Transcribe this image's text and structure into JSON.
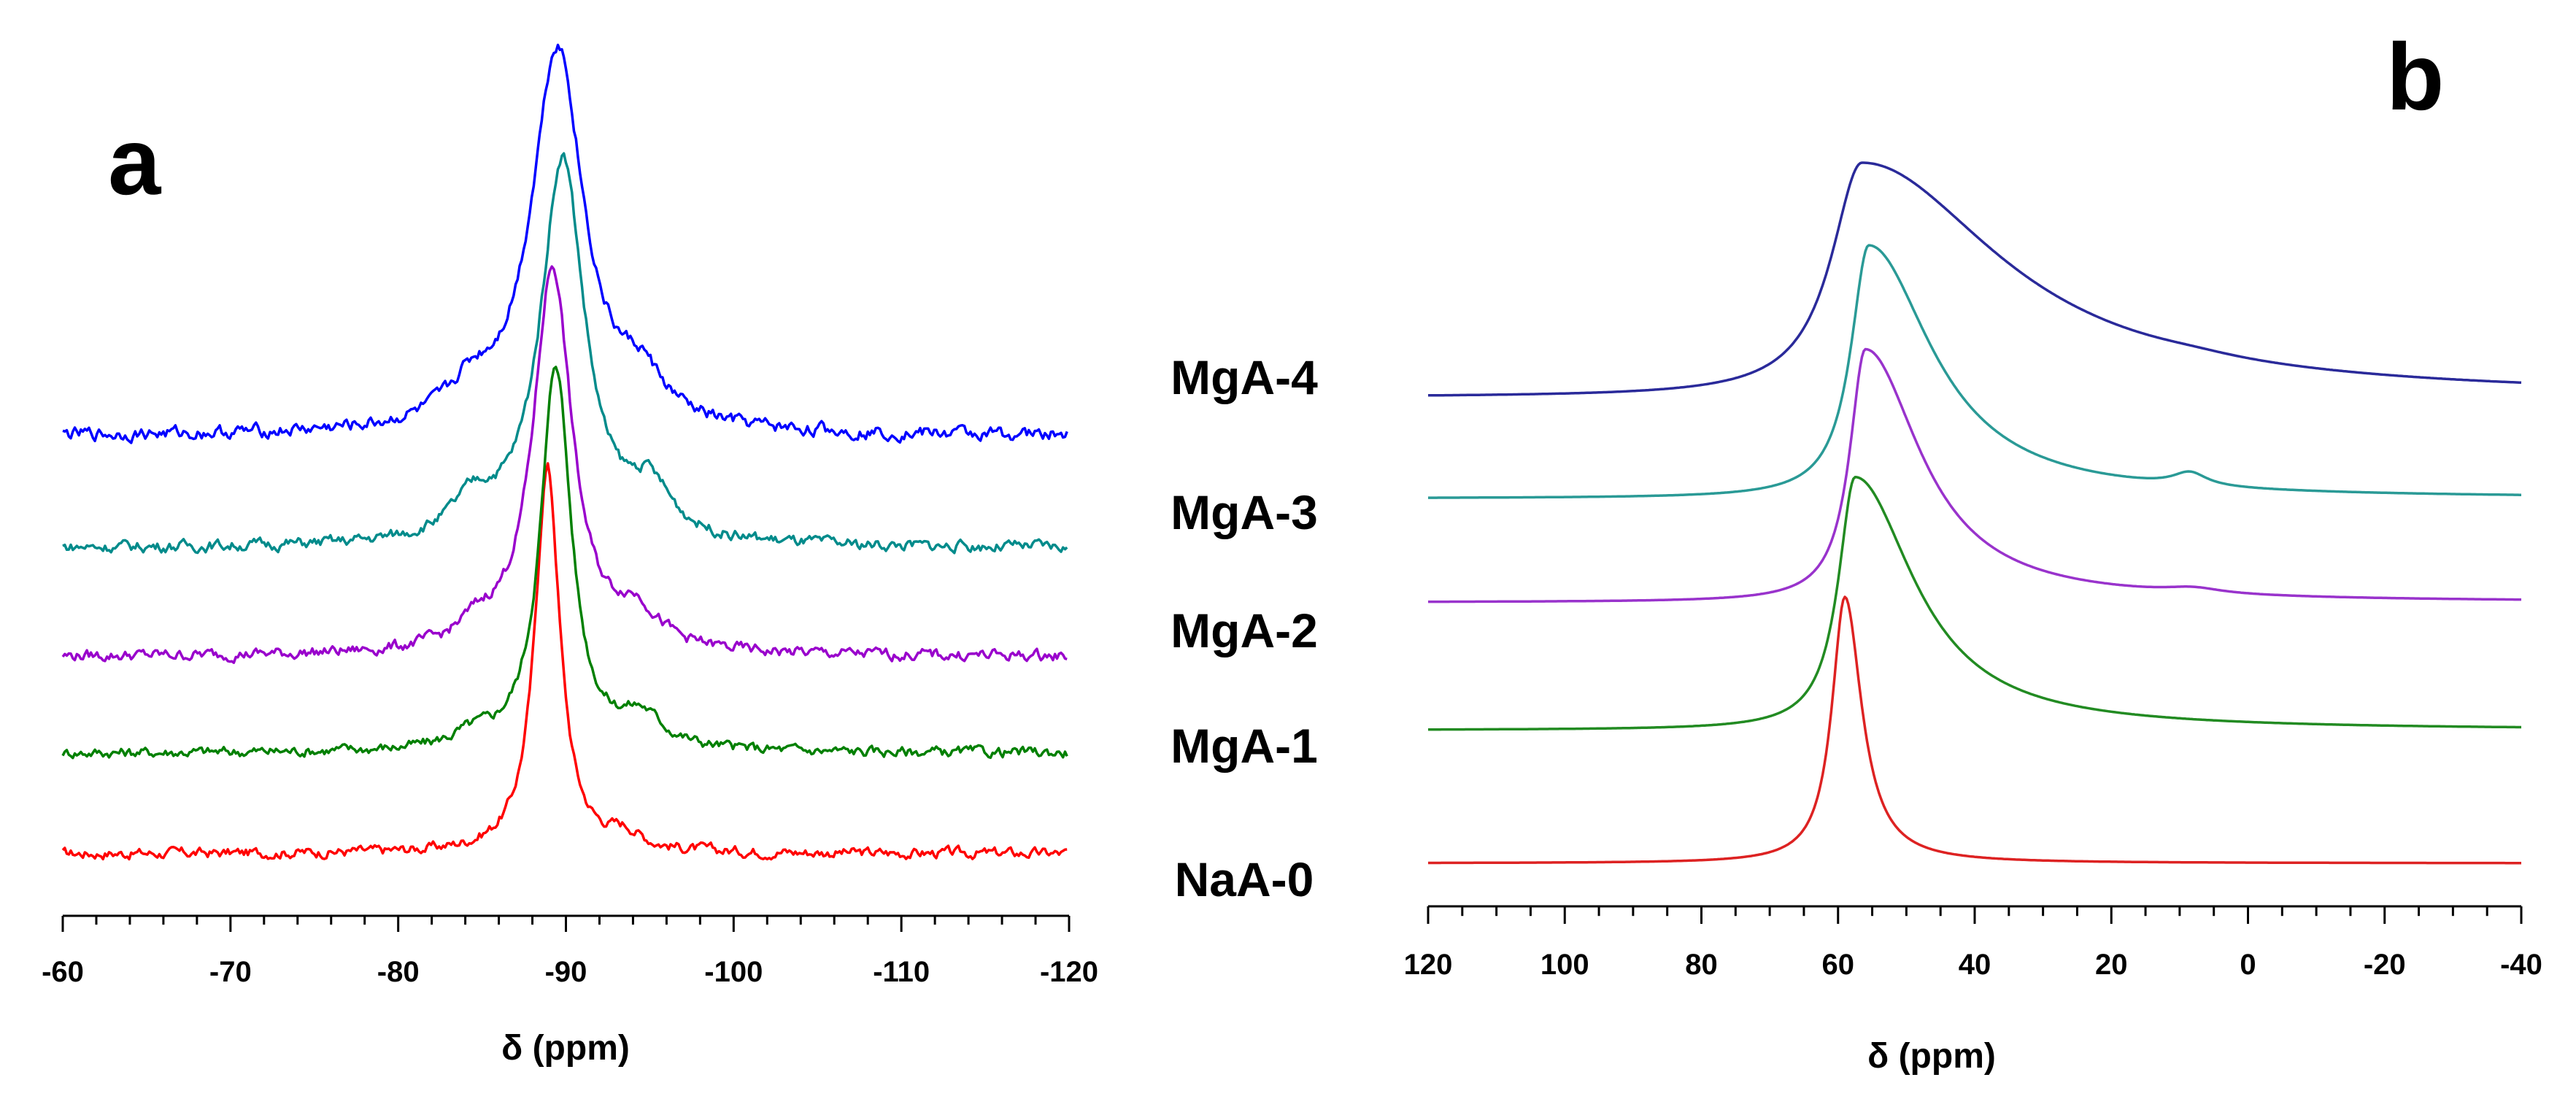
{
  "legend_labels": [
    "MgA-4",
    "MgA-3",
    "MgA-2",
    "MgA-1",
    "NaA-0"
  ],
  "chart_data": [
    {
      "type": "line",
      "panel": "a",
      "xlabel": "δ (ppm)",
      "ylabel": "",
      "xlim": [
        -60,
        -120
      ],
      "xticks": [
        -60,
        -70,
        -80,
        -90,
        -100,
        -110,
        -120
      ],
      "tick_labels": [
        "-60",
        "-70",
        "-80",
        "-90",
        "-100",
        "-110",
        "-120"
      ],
      "grid": false,
      "series": [
        {
          "name": "NaA-0",
          "color": "#ff0000",
          "baseline": 0.0,
          "noise": 0.012,
          "peaks": [
            {
              "center": -88.9,
              "height": 1.0,
              "width": 0.9
            },
            {
              "center": -93.5,
              "height": 0.04,
              "width": 1.2
            }
          ]
        },
        {
          "name": "MgA-1",
          "color": "#008000",
          "baseline": 0.26,
          "noise": 0.012,
          "peaks": [
            {
              "center": -89.4,
              "height": 1.0,
              "width": 1.1
            },
            {
              "center": -94.5,
              "height": 0.08,
              "width": 1.6
            },
            {
              "center": -84.5,
              "height": 0.03,
              "width": 1.5
            }
          ]
        },
        {
          "name": "MgA-2",
          "color": "#9900cc",
          "baseline": 0.51,
          "noise": 0.013,
          "peaks": [
            {
              "center": -89.2,
              "height": 1.0,
              "width": 1.4
            },
            {
              "center": -94.2,
              "height": 0.09,
              "width": 1.6
            },
            {
              "center": -84.8,
              "height": 0.05,
              "width": 1.5
            }
          ]
        },
        {
          "name": "MgA-3",
          "color": "#008b8b",
          "baseline": 0.79,
          "noise": 0.013,
          "peaks": [
            {
              "center": -89.8,
              "height": 1.0,
              "width": 1.6
            },
            {
              "center": -95.0,
              "height": 0.12,
              "width": 1.6
            },
            {
              "center": -84.5,
              "height": 0.09,
              "width": 1.6
            }
          ]
        },
        {
          "name": "MgA-4",
          "color": "#0000ff",
          "baseline": 1.08,
          "noise": 0.015,
          "peaks": [
            {
              "center": -89.5,
              "height": 1.0,
              "width": 1.9
            },
            {
              "center": -94.5,
              "height": 0.1,
              "width": 1.6
            },
            {
              "center": -84.3,
              "height": 0.08,
              "width": 1.6
            }
          ]
        }
      ]
    },
    {
      "type": "line",
      "panel": "b",
      "xlabel": "δ (ppm)",
      "ylabel": "",
      "xlim": [
        120,
        -40
      ],
      "xticks": [
        120,
        100,
        80,
        60,
        40,
        20,
        0,
        -20,
        -40
      ],
      "tick_labels": [
        "120",
        "100",
        "80",
        "60",
        "40",
        "20",
        "0",
        "-20",
        "-40"
      ],
      "grid": false,
      "series": [
        {
          "name": "NaA-0",
          "color": "#dd2222",
          "baseline": 0.0,
          "noise": 0.0,
          "peaks": [
            {
              "center": 59.0,
              "height": 1.0,
              "width": 2.3,
              "tail": 1.3
            }
          ]
        },
        {
          "name": "MgA-1",
          "color": "#228b22",
          "baseline": 0.5,
          "noise": 0.0,
          "peaks": [
            {
              "center": 57.5,
              "height": 0.95,
              "width": 3.0,
              "tail": 3.5
            }
          ]
        },
        {
          "name": "MgA-2",
          "color": "#9933cc",
          "baseline": 0.98,
          "noise": 0.0,
          "peaks": [
            {
              "center": 56.0,
              "height": 0.95,
              "width": 2.8,
              "tail": 3.5
            },
            {
              "center": 8.0,
              "height": 0.02,
              "width": 5.0
            }
          ]
        },
        {
          "name": "MgA-3",
          "color": "#2a9a96",
          "baseline": 1.37,
          "noise": 0.0,
          "peaks": [
            {
              "center": 55.5,
              "height": 0.95,
              "width": 3.2,
              "tail": 3.5
            },
            {
              "center": 8.5,
              "height": 0.05,
              "width": 3.0
            }
          ]
        },
        {
          "name": "MgA-4",
          "color": "#2a2a9a",
          "baseline": 1.75,
          "noise": 0.0,
          "peaks": [
            {
              "center": 56.5,
              "height": 0.88,
              "width": 5.5,
              "tail": 4.5
            },
            {
              "center": 8.0,
              "height": 0.01,
              "width": 8.0
            }
          ]
        }
      ]
    }
  ]
}
